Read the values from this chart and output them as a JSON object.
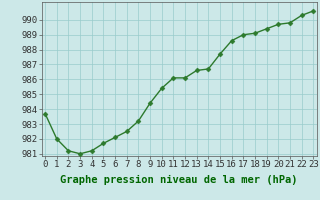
{
  "x": [
    0,
    1,
    2,
    3,
    4,
    5,
    6,
    7,
    8,
    9,
    10,
    11,
    12,
    13,
    14,
    15,
    16,
    17,
    18,
    19,
    20,
    21,
    22,
    23
  ],
  "y": [
    983.7,
    982.0,
    981.2,
    981.0,
    981.2,
    981.7,
    982.1,
    982.5,
    983.2,
    984.4,
    985.4,
    986.1,
    986.1,
    986.6,
    986.7,
    987.7,
    988.6,
    989.0,
    989.1,
    989.4,
    989.7,
    989.8,
    990.3,
    990.6
  ],
  "line_color": "#2d7a2d",
  "marker_color": "#2d7a2d",
  "bg_color": "#cce8e8",
  "grid_color": "#99cccc",
  "xlabel": "Graphe pression niveau de la mer (hPa)",
  "ylim_min": 981,
  "ylim_max": 991,
  "yticks": [
    981,
    982,
    983,
    984,
    985,
    986,
    987,
    988,
    989,
    990
  ],
  "xticks": [
    0,
    1,
    2,
    3,
    4,
    5,
    6,
    7,
    8,
    9,
    10,
    11,
    12,
    13,
    14,
    15,
    16,
    17,
    18,
    19,
    20,
    21,
    22,
    23
  ],
  "xlabel_fontsize": 7.5,
  "tick_fontsize": 6.5,
  "line_width": 1.0,
  "marker_size": 2.5,
  "xlim_left": -0.3,
  "xlim_right": 23.3
}
